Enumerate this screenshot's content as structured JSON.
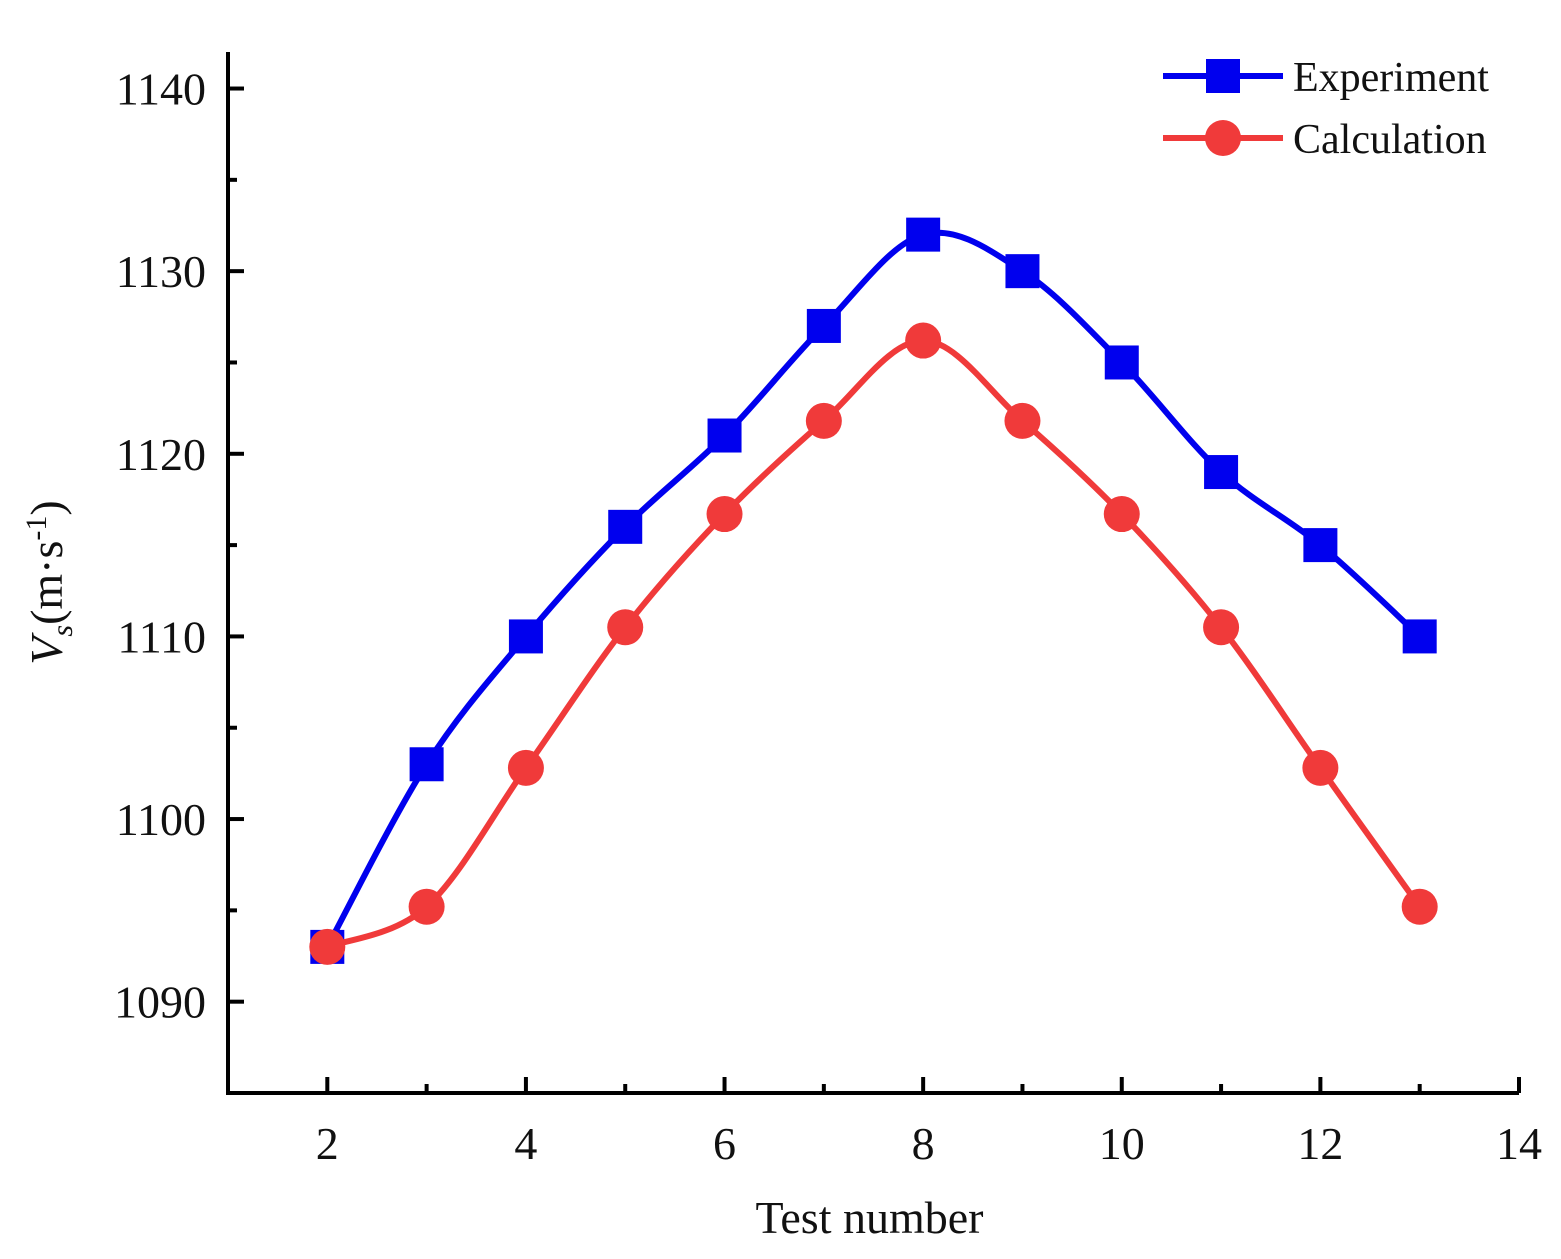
{
  "chart_data": {
    "type": "line",
    "title": "",
    "xlabel": "Test number",
    "ylabel": {
      "base": "V",
      "subscript": "s",
      "unit_prefix": "(m·s",
      "superscript": "-1",
      "unit_suffix": ")"
    },
    "xlim": [
      1,
      14
    ],
    "ylim": [
      1085,
      1142
    ],
    "x_ticks": [
      2,
      4,
      6,
      8,
      10,
      12,
      14
    ],
    "x_tick_labels": [
      "2",
      "4",
      "6",
      "8",
      "10",
      "12",
      "14"
    ],
    "y_ticks": [
      1090,
      1100,
      1110,
      1120,
      1130,
      1140
    ],
    "y_tick_labels": [
      "1090",
      "1100",
      "1110",
      "1120",
      "1130",
      "1140"
    ],
    "grid": false,
    "legend_position": "top-right",
    "x": [
      2,
      3,
      4,
      5,
      6,
      7,
      8,
      9,
      10,
      11,
      12,
      13
    ],
    "series": [
      {
        "name": "Experiment",
        "color": "#0000ee",
        "marker": "square",
        "values": [
          1093,
          1103,
          1110,
          1116,
          1121,
          1127,
          1132,
          1130,
          1125,
          1119,
          1115,
          1110
        ]
      },
      {
        "name": "Calculation",
        "color": "#f03a3a",
        "marker": "circle",
        "values": [
          1093,
          1095.2,
          1102.8,
          1110.5,
          1116.7,
          1121.8,
          1126.2,
          1121.8,
          1116.7,
          1110.5,
          1102.8,
          1095.2
        ]
      }
    ]
  }
}
